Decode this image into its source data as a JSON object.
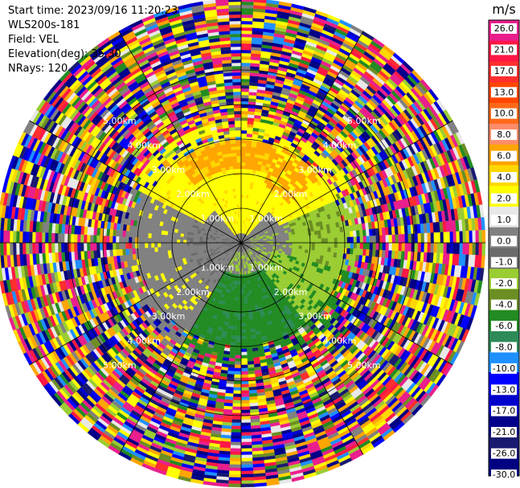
{
  "header": {
    "start_time": "Start time: 2023/09/16 11:20:23",
    "instrument": "WLS200s-181",
    "field": "Field: VEL",
    "elevation": "Elevation(deg): 35.30",
    "nrays": "NRays: 120"
  },
  "chart_data": {
    "type": "heatmap",
    "projection": "polar-ppi",
    "field": "VEL",
    "nrays": 120,
    "range_rings_km": [
      1.0,
      2.0,
      3.0,
      4.0,
      5.0
    ],
    "range_ring_labels": [
      "1.00km",
      "2.00km",
      "3.00km",
      "4.00km",
      "5.00km"
    ],
    "max_range_km": 7.2,
    "colorbar": {
      "unit": "m/s",
      "tick_labels": [
        "26.0",
        "21.0",
        "17.0",
        "13.0",
        "10.0",
        "8.0",
        "6.0",
        "4.0",
        "2.0",
        "1.0",
        "0.0",
        "-1.0",
        "-2.0",
        "-4.0",
        "-6.0",
        "-8.0",
        "-10.0",
        "-13.0",
        "-17.0",
        "-21.0",
        "-26.0",
        "-30.0"
      ],
      "colors": [
        "#e91e8c",
        "#ff1744",
        "#ff2e2e",
        "#ff4500",
        "#ff6a1a",
        "#ff8c69",
        "#ffa500",
        "#ffd700",
        "#ffff00",
        "#e8e8e8",
        "#808080",
        "#6b6b6b",
        "#9acd32",
        "#6b8e23",
        "#228b22",
        "#2e8b57",
        "#1e90ff",
        "#0000ff",
        "#0000cd",
        "#00008b",
        "#191970",
        "#000080"
      ]
    }
  }
}
